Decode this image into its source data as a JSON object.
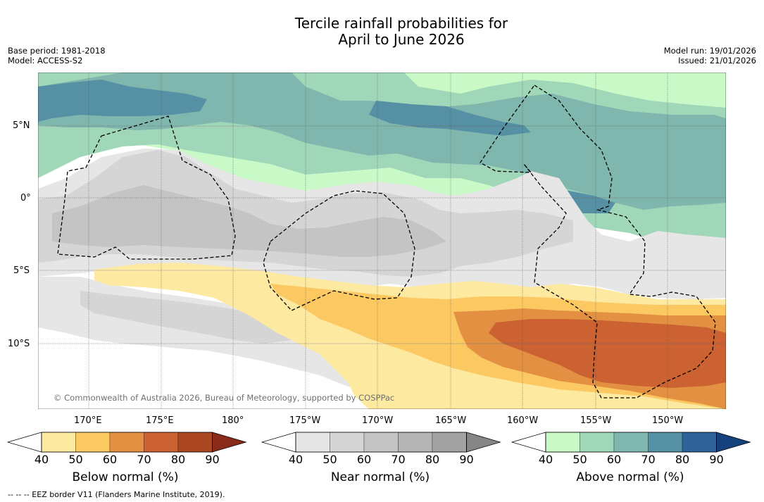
{
  "title": {
    "line1": "Tercile rainfall probabilities for",
    "line2": "April to June 2026"
  },
  "meta": {
    "base_period": "Base period: 1981-2018",
    "model": "Model: ACCESS-S2",
    "model_run": "Model run: 19/01/2026",
    "issued": "Issued: 21/01/2026"
  },
  "map": {
    "copyright": "© Commonwealth of Australia 2026, Bureau of Meteorology, supported by COSPPac",
    "lat_labels": [
      "5°N",
      "0°",
      "5°S",
      "10°S"
    ],
    "lon_labels": [
      "170°E",
      "175°E",
      "180°",
      "175°W",
      "170°W",
      "165°W",
      "160°W",
      "155°W",
      "150°W"
    ],
    "longitude_range": [
      167,
      214
    ],
    "latitude_range": [
      -14.5,
      8.5
    ],
    "lon_ticks_deg": [
      170,
      175,
      180,
      185,
      190,
      195,
      200,
      205,
      210
    ],
    "lat_ticks_deg": [
      5,
      0,
      -5,
      -10
    ]
  },
  "colorbars": [
    {
      "label": "Below normal (%)",
      "ticks": [
        "40",
        "50",
        "60",
        "70",
        "80",
        "90"
      ],
      "colors": [
        "#ffffff",
        "#fde9a0",
        "#fbc862",
        "#e39043",
        "#cc6232",
        "#ab4822",
        "#8a2a18"
      ]
    },
    {
      "label": "Near normal (%)",
      "ticks": [
        "40",
        "50",
        "60",
        "70",
        "80",
        "90"
      ],
      "colors": [
        "#ffffff",
        "#e6e6e6",
        "#d5d5d5",
        "#c4c4c4",
        "#b4b4b4",
        "#a2a2a2",
        "#858585"
      ]
    },
    {
      "label": "Above normal (%)",
      "ticks": [
        "40",
        "50",
        "60",
        "70",
        "80",
        "90"
      ],
      "colors": [
        "#ffffff",
        "#c8f9c6",
        "#a1d7b9",
        "#7fb6ae",
        "#5590a4",
        "#30629a",
        "#15427c"
      ]
    }
  ],
  "footnote": "-- -- -- EEZ border V11 (Flanders Marine Institute, 2019)."
}
